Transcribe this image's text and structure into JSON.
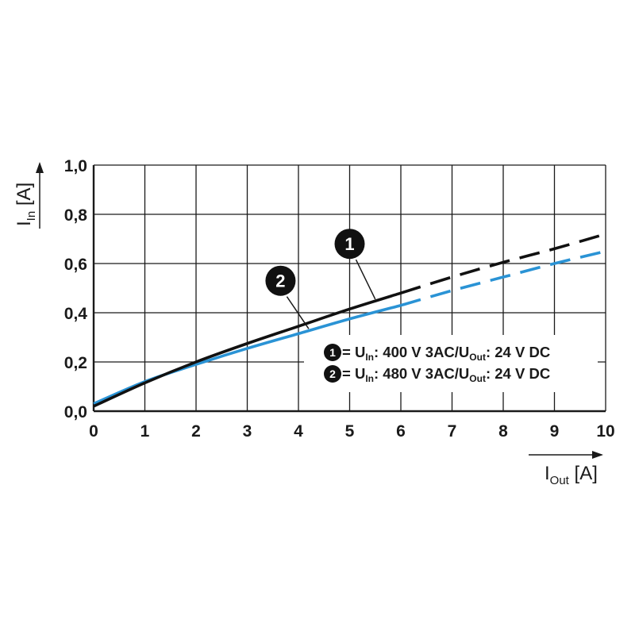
{
  "chart_data": {
    "type": "line",
    "x_axis": {
      "label_main": "I",
      "label_sub": "Out",
      "label_unit": "[A]",
      "range": [
        0,
        10
      ],
      "ticks": [
        0,
        1,
        2,
        3,
        4,
        5,
        6,
        7,
        8,
        9,
        10
      ],
      "tick_labels": [
        "0",
        "1",
        "2",
        "3",
        "4",
        "5",
        "6",
        "7",
        "8",
        "9",
        "10"
      ]
    },
    "y_axis": {
      "label_main": "I",
      "label_sub": "In",
      "label_unit": "[A]",
      "range": [
        0,
        1.0
      ],
      "ticks": [
        0,
        0.2,
        0.4,
        0.6,
        0.8,
        1.0
      ],
      "tick_labels": [
        "0,0",
        "0,2",
        "0,4",
        "0,6",
        "0,8",
        "1,0"
      ]
    },
    "grid": true,
    "series": [
      {
        "id": "1",
        "color": "#111111",
        "solid_until_x": 6,
        "points": [
          [
            0,
            0.02
          ],
          [
            1,
            0.115
          ],
          [
            2,
            0.2
          ],
          [
            3,
            0.275
          ],
          [
            4,
            0.345
          ],
          [
            5,
            0.415
          ],
          [
            6,
            0.48
          ],
          [
            7,
            0.545
          ],
          [
            8,
            0.605
          ],
          [
            9,
            0.66
          ],
          [
            10,
            0.72
          ]
        ]
      },
      {
        "id": "2",
        "color": "#2a93d5",
        "solid_until_x": 6,
        "points": [
          [
            0,
            0.03
          ],
          [
            1,
            0.12
          ],
          [
            2,
            0.19
          ],
          [
            3,
            0.255
          ],
          [
            4,
            0.315
          ],
          [
            5,
            0.375
          ],
          [
            6,
            0.43
          ],
          [
            7,
            0.49
          ],
          [
            8,
            0.545
          ],
          [
            9,
            0.6
          ],
          [
            10,
            0.65
          ]
        ]
      }
    ],
    "callouts": [
      {
        "series": "1",
        "label": "1",
        "badge_at": [
          5.0,
          0.68
        ],
        "arrow_to": [
          5.5,
          0.455
        ]
      },
      {
        "series": "2",
        "label": "2",
        "badge_at": [
          3.65,
          0.53
        ],
        "arrow_to": [
          4.2,
          0.335
        ]
      }
    ],
    "legend": {
      "placement": "bottom-right",
      "entries": [
        {
          "badge": "1",
          "eq": "= ",
          "u_in": "U",
          "u_in_sub": "In",
          "mid": ": 400 V 3AC/U",
          "u_out_sub": "Out",
          "tail": ": 24 V DC"
        },
        {
          "badge": "2",
          "eq": "= ",
          "u_in": "U",
          "u_in_sub": "In",
          "mid": ": 480 V 3AC/U",
          "u_out_sub": "Out",
          "tail": ": 24 V DC"
        }
      ]
    }
  }
}
